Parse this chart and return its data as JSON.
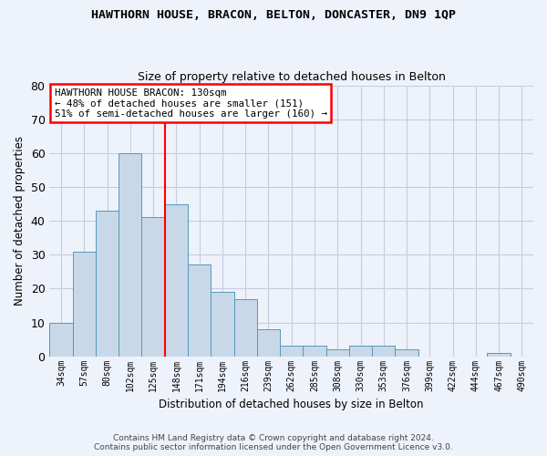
{
  "title": "HAWTHORN HOUSE, BRACON, BELTON, DONCASTER, DN9 1QP",
  "subtitle": "Size of property relative to detached houses in Belton",
  "xlabel": "Distribution of detached houses by size in Belton",
  "ylabel": "Number of detached properties",
  "footer_line1": "Contains HM Land Registry data © Crown copyright and database right 2024.",
  "footer_line2": "Contains public sector information licensed under the Open Government Licence v3.0.",
  "categories": [
    "34sqm",
    "57sqm",
    "80sqm",
    "102sqm",
    "125sqm",
    "148sqm",
    "171sqm",
    "194sqm",
    "216sqm",
    "239sqm",
    "262sqm",
    "285sqm",
    "308sqm",
    "330sqm",
    "353sqm",
    "376sqm",
    "399sqm",
    "422sqm",
    "444sqm",
    "467sqm",
    "490sqm"
  ],
  "values": [
    10,
    31,
    43,
    60,
    41,
    45,
    27,
    19,
    17,
    8,
    3,
    3,
    2,
    3,
    3,
    2,
    0,
    0,
    0,
    1,
    0
  ],
  "bar_color": "#c8d8e8",
  "bar_edge_color": "#5599bb",
  "grid_color": "#c8cce0",
  "background_color": "#eef2fb",
  "red_line_x": 4.5,
  "annotation_text": "HAWTHORN HOUSE BRACON: 130sqm\n← 48% of detached houses are smaller (151)\n51% of semi-detached houses are larger (160) →",
  "annotation_box_color": "white",
  "annotation_box_edge": "red",
  "ylim": [
    0,
    80
  ],
  "yticks": [
    0,
    10,
    20,
    30,
    40,
    50,
    60,
    70,
    80
  ]
}
